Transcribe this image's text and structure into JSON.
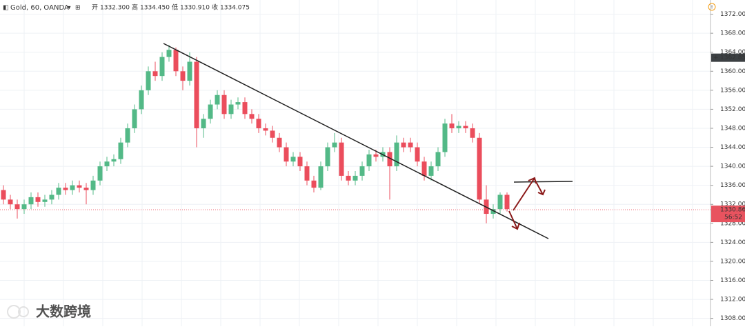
{
  "chart_data": {
    "type": "candlestick",
    "title": "Gold, 60, OANDA",
    "quote": [
      {
        "name": "开",
        "value": {
          "value": 1332.3,
          "label": "1332.300"
        }
      },
      {
        "name": "高",
        "value": {
          "value": 1334.45,
          "label": "1334.450"
        }
      },
      {
        "name": "低",
        "value": {
          "value": 1330.91,
          "label": "1330.910"
        }
      },
      {
        "name": "收",
        "value": 1334.075
      }
    ],
    "up_color": "#53b987",
    "down_color": "#eb4d5c",
    "open": [
      1335,
      1333,
      1332,
      1331,
      1332,
      1333.5,
      1332.5,
      1333,
      1334,
      1335.5,
      1335,
      1336,
      1335.5,
      1335,
      1337,
      1340,
      1341,
      1341.5,
      1345,
      1348,
      1352,
      1356,
      1360,
      1359,
      1363,
      1364.5,
      1360,
      1358,
      1362,
      1348,
      1350,
      1353,
      1355,
      1351,
      1353,
      1353.5,
      1351,
      1350,
      1348,
      1347.5,
      1346,
      1344,
      1341,
      1342,
      1340,
      1337,
      1335.5,
      1340,
      1344,
      1345,
      1338,
      1337,
      1338,
      1340,
      1342.5,
      1342,
      1343,
      1340,
      1345,
      1345,
      1344,
      1341,
      1338,
      1340,
      1343,
      1349,
      1348,
      1348.5,
      1348,
      1346,
      1333,
      1330,
      1331,
      1334
    ],
    "high": [
      1336,
      1334,
      1333,
      1333,
      1334.5,
      1334.5,
      1334,
      1335,
      1336.5,
      1336.5,
      1337,
      1337,
      1336.5,
      1338,
      1341,
      1342,
      1342.5,
      1346,
      1349,
      1353,
      1357,
      1361,
      1362,
      1364,
      1365.5,
      1365,
      1361,
      1364,
      1363,
      1351,
      1354,
      1356,
      1356,
      1354,
      1354.5,
      1354.5,
      1352,
      1351,
      1349,
      1348.5,
      1347,
      1345,
      1343,
      1343,
      1341,
      1338,
      1341,
      1345,
      1347,
      1346,
      1339,
      1339,
      1341,
      1343.5,
      1343.5,
      1344,
      1344,
      1346.5,
      1346,
      1346,
      1345,
      1342,
      1341,
      1344,
      1350,
      1351,
      1349.5,
      1349.5,
      1349,
      1347,
      1336,
      1332,
      1334.5,
      1334.5
    ],
    "low": [
      1332,
      1331,
      1329,
      1330,
      1331,
      1331.5,
      1331.5,
      1332,
      1333,
      1334,
      1334,
      1334.5,
      1332,
      1334,
      1336,
      1339,
      1340,
      1340.5,
      1344,
      1347,
      1351,
      1355,
      1358,
      1358,
      1362,
      1359,
      1356,
      1357,
      1344,
      1346,
      1349,
      1352,
      1350,
      1350,
      1352,
      1350,
      1349,
      1347,
      1346.5,
      1345,
      1343,
      1340,
      1340,
      1339,
      1336,
      1334.5,
      1335,
      1339,
      1343,
      1337,
      1336,
      1336,
      1337,
      1339,
      1341,
      1341,
      1333,
      1339,
      1343,
      1343,
      1340,
      1337,
      1337,
      1339,
      1342,
      1347,
      1347,
      1347,
      1345,
      1332,
      1328,
      1329,
      1330,
      1330.5
    ],
    "close": [
      1333,
      1332,
      1331,
      1332,
      1333.5,
      1332.5,
      1333,
      1334,
      1335.5,
      1335,
      1336,
      1335.5,
      1335,
      1337,
      1340,
      1341,
      1341.5,
      1345,
      1348,
      1352,
      1356,
      1360,
      1359,
      1363,
      1364.5,
      1360,
      1358,
      1362,
      1348,
      1350,
      1353,
      1355,
      1351,
      1353,
      1353.5,
      1351,
      1350,
      1348,
      1347.5,
      1346,
      1344,
      1341,
      1342,
      1340,
      1337,
      1335.5,
      1340,
      1344,
      1345,
      1338,
      1337,
      1338,
      1340,
      1342.5,
      1342,
      1343,
      1340,
      1345,
      1344,
      1344,
      1341,
      1338,
      1340,
      1343,
      1349,
      1348,
      1348.5,
      1348,
      1346,
      1333,
      1330,
      1331,
      1334,
      1331
    ],
    "ylim": [
      1306.35,
      1374.99
    ],
    "yticks": [
      {
        "value": 1308,
        "label": "1308.000"
      },
      {
        "value": 1312,
        "label": "1312.000"
      },
      {
        "value": 1316,
        "label": "1316.000"
      },
      {
        "value": 1320,
        "label": "1320.000"
      },
      {
        "value": 1324,
        "label": "1324.000"
      },
      {
        "value": 1328,
        "label": "1328.000"
      },
      {
        "value": 1332,
        "label": "1332.000"
      },
      {
        "value": 1336,
        "label": "1336.000"
      },
      {
        "value": 1340,
        "label": "1340.000"
      },
      {
        "value": 1344,
        "label": "1344.000"
      },
      {
        "value": 1348,
        "label": "1348.000"
      },
      {
        "value": 1352,
        "label": "1352.000"
      },
      {
        "value": 1356,
        "label": "1356.000"
      },
      {
        "value": 1360,
        "label": "1360.000"
      },
      {
        "value": 1364,
        "label": "1364.000"
      },
      {
        "value": 1368,
        "label": "1368.000"
      },
      {
        "value": 1372,
        "label": "1372.000"
      }
    ],
    "grid": true,
    "high_marker": 1362.851,
    "last_price": 1330.862,
    "countdown": "56:52",
    "watermark": "大数跨境"
  }
}
